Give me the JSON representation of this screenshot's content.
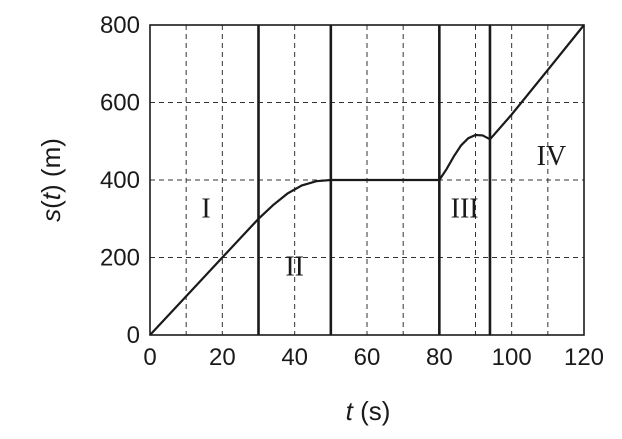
{
  "chart_data": {
    "type": "line",
    "xlabel_var": "t",
    "xlabel_unit": " (s)",
    "ylabel_var": "s",
    "ylabel_arg": "t",
    "ylabel_unit": " (m)",
    "xlim": [
      0,
      120
    ],
    "ylim": [
      0,
      800
    ],
    "xticks": [
      0,
      20,
      40,
      60,
      80,
      100,
      120
    ],
    "yticks": [
      0,
      200,
      400,
      600,
      800
    ],
    "x_minor_grid_step": 10,
    "y_grid_step": 200,
    "grid": true,
    "region_boundaries": [
      30,
      50,
      80,
      94
    ],
    "series": [
      {
        "x": [
          0,
          10,
          20,
          30,
          34,
          38,
          42,
          46,
          50,
          60,
          70,
          80,
          82,
          84,
          86,
          88,
          90,
          92,
          94,
          100,
          110,
          120
        ],
        "y": [
          0,
          100,
          200,
          300,
          335,
          365,
          386,
          397,
          400,
          400,
          400,
          400,
          428,
          461,
          489,
          508,
          516,
          515,
          505,
          569,
          684,
          800
        ]
      }
    ],
    "annotations": [
      {
        "text": "I",
        "x": 15.5,
        "y": 320
      },
      {
        "text": "II",
        "x": 40,
        "y": 170
      },
      {
        "text": "III",
        "x": 87,
        "y": 320
      },
      {
        "text": "IV",
        "x": 111,
        "y": 455
      }
    ]
  }
}
